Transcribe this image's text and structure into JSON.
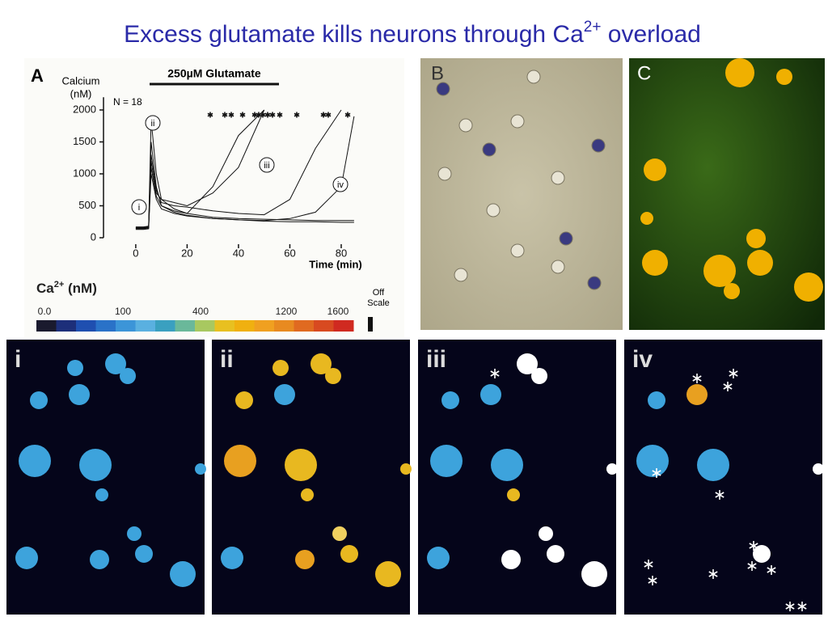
{
  "title": {
    "main": "Excess glutamate kills neurons through Ca",
    "sup": "2+",
    "tail": " overload"
  },
  "chart_data": {
    "type": "line",
    "panel_label": "A",
    "ylabel": [
      "Calcium",
      "(nM)"
    ],
    "xlabel": "Time (min)",
    "annotations": {
      "n": "N = 18",
      "treatment": "250µM Glutamate",
      "points": [
        "i",
        "ii",
        "iii",
        "iv"
      ]
    },
    "x": [
      0,
      3,
      5,
      6,
      8,
      10,
      15,
      20,
      30,
      40,
      50,
      60,
      70,
      80,
      85
    ],
    "series": [
      {
        "color": "#111111",
        "values": [
          150,
          150,
          160,
          1850,
          1000,
          600,
          450,
          380,
          320,
          300,
          290,
          280,
          270,
          270,
          270
        ]
      },
      {
        "color": "#111111",
        "values": [
          160,
          160,
          170,
          1500,
          800,
          500,
          400,
          350,
          300,
          280,
          260,
          250,
          250,
          240,
          240
        ]
      },
      {
        "color": "#111111",
        "values": [
          140,
          140,
          150,
          1200,
          700,
          600,
          550,
          500,
          700,
          1100,
          2000,
          null,
          null,
          null,
          null
        ]
      },
      {
        "color": "#111111",
        "values": [
          170,
          170,
          180,
          1300,
          750,
          550,
          500,
          480,
          420,
          380,
          360,
          600,
          1400,
          2000,
          null
        ]
      },
      {
        "color": "#111111",
        "values": [
          150,
          150,
          160,
          1100,
          650,
          500,
          420,
          380,
          800,
          1600,
          2000,
          null,
          null,
          null,
          null
        ]
      },
      {
        "color": "#111111",
        "values": [
          130,
          130,
          140,
          1000,
          600,
          450,
          380,
          340,
          300,
          280,
          270,
          300,
          400,
          800,
          1900
        ]
      }
    ],
    "xlim": [
      -5,
      88
    ],
    "ylim": [
      -100,
      2200
    ],
    "xticks": [
      0,
      20,
      40,
      60,
      80
    ],
    "yticks": [
      0,
      500,
      1000,
      1500,
      2000
    ]
  },
  "colorbar": {
    "label": {
      "main": "Ca",
      "sup": "2+",
      "tail": " (nM)"
    },
    "ticks": [
      "0.0",
      "100",
      "400",
      "1200",
      "1600"
    ],
    "off_scale": [
      "Off",
      "Scale"
    ],
    "colors": [
      "#1a1a2e",
      "#1d2f7a",
      "#1f4fb0",
      "#2a72c8",
      "#3c95d8",
      "#5ab0e0",
      "#3aa0c0",
      "#6ab89a",
      "#a8c860",
      "#e8c020",
      "#f0b010",
      "#f0a020",
      "#e88a20",
      "#e06a20",
      "#d84a20",
      "#d02a20"
    ]
  },
  "micrographs": [
    {
      "label": "B"
    },
    {
      "label": "C"
    }
  ],
  "ratio_panels": [
    {
      "label": "i"
    },
    {
      "label": "ii"
    },
    {
      "label": "iii"
    },
    {
      "label": "iv"
    }
  ]
}
